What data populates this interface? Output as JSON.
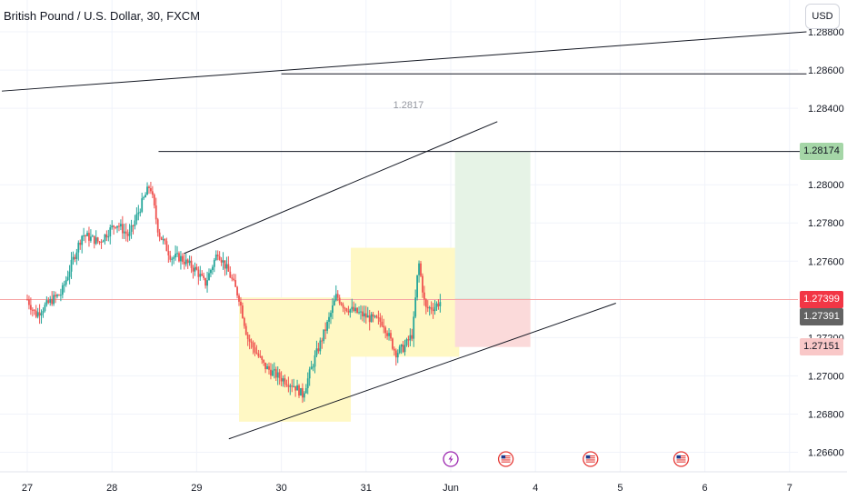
{
  "header": {
    "title": "British Pound / U.S. Dollar, 30, FXCM",
    "currency_button": "USD"
  },
  "price_tags": {
    "target": "1.28174",
    "last": "1.27399",
    "current": "1.27391",
    "stop": "1.27151"
  },
  "annotations": {
    "target_label": "1.2817"
  },
  "colors": {
    "bull": "#26a69a",
    "bear": "#ef5350",
    "target_zone": "#e6f3e6",
    "stop_zone": "#fbdada",
    "highlight_box": "#fff8c4",
    "target_tag": "#a5d6a7",
    "last_tag": "#f23645",
    "current_tag": "#636363",
    "stop_tag": "#f9c8c8"
  },
  "event_icons": [
    "lightning-icon",
    "us-flag-icon",
    "us-flag-icon",
    "us-flag-icon"
  ],
  "chart_data": {
    "type": "candlestick",
    "x_ticks": [
      "27",
      "28",
      "29",
      "30",
      "31",
      "Jun",
      "4",
      "5",
      "6",
      "7"
    ],
    "y_ticks": [
      "1.28800",
      "1.28600",
      "1.28400",
      "1.28000",
      "1.27800",
      "1.27600",
      "1.27200",
      "1.27000",
      "1.26800",
      "1.26600"
    ],
    "ylim": [
      1.2655,
      1.289
    ],
    "anchors": [
      {
        "t": 0,
        "p": 1.274
      },
      {
        "t": 0.1,
        "p": 1.2732
      },
      {
        "t": 0.3,
        "p": 1.274
      },
      {
        "t": 0.4,
        "p": 1.2743
      },
      {
        "t": 0.55,
        "p": 1.2762
      },
      {
        "t": 0.65,
        "p": 1.2774
      },
      {
        "t": 0.85,
        "p": 1.277
      },
      {
        "t": 1.05,
        "p": 1.278
      },
      {
        "t": 1.2,
        "p": 1.2773
      },
      {
        "t": 1.35,
        "p": 1.279
      },
      {
        "t": 1.45,
        "p": 1.28
      },
      {
        "t": 1.55,
        "p": 1.2775
      },
      {
        "t": 1.7,
        "p": 1.2762
      },
      {
        "t": 1.8,
        "p": 1.2762
      },
      {
        "t": 2.0,
        "p": 1.2755
      },
      {
        "t": 2.1,
        "p": 1.2748
      },
      {
        "t": 2.25,
        "p": 1.2765
      },
      {
        "t": 2.4,
        "p": 1.2752
      },
      {
        "t": 2.5,
        "p": 1.2741
      },
      {
        "t": 2.6,
        "p": 1.272
      },
      {
        "t": 2.8,
        "p": 1.2705
      },
      {
        "t": 2.95,
        "p": 1.27
      },
      {
        "t": 3.15,
        "p": 1.2695
      },
      {
        "t": 3.25,
        "p": 1.269
      },
      {
        "t": 3.4,
        "p": 1.271
      },
      {
        "t": 3.55,
        "p": 1.2728
      },
      {
        "t": 3.65,
        "p": 1.2742
      },
      {
        "t": 3.75,
        "p": 1.2736
      },
      {
        "t": 3.9,
        "p": 1.2733
      },
      {
        "t": 4.05,
        "p": 1.273
      },
      {
        "t": 4.2,
        "p": 1.2728
      },
      {
        "t": 4.35,
        "p": 1.2712
      },
      {
        "t": 4.45,
        "p": 1.2715
      },
      {
        "t": 4.55,
        "p": 1.2722
      },
      {
        "t": 4.62,
        "p": 1.276
      },
      {
        "t": 4.7,
        "p": 1.2735
      },
      {
        "t": 4.8,
        "p": 1.2736
      },
      {
        "t": 4.88,
        "p": 1.2739
      }
    ],
    "trend_lines": [
      {
        "t1": -0.3,
        "p1": 1.2849,
        "t2": 9.2,
        "p2": 1.288
      },
      {
        "t1": 3.0,
        "p1": 1.2858,
        "t2": 9.2,
        "p2": 1.2858
      },
      {
        "t1": 1.55,
        "p1": 1.28174,
        "t2": 9.2,
        "p2": 1.28174
      },
      {
        "t1": 1.85,
        "p1": 1.2764,
        "t2": 5.55,
        "p2": 1.2833
      },
      {
        "t1": 2.38,
        "p1": 1.2667,
        "t2": 6.95,
        "p2": 1.2738
      }
    ],
    "highlight_boxes": [
      {
        "t1": 2.5,
        "t2": 3.82,
        "p1": 1.2676,
        "p2": 1.2741
      },
      {
        "t1": 3.82,
        "t2": 5.1,
        "p1": 1.271,
        "p2": 1.2767
      }
    ],
    "position": {
      "t1": 5.05,
      "t2": 5.94,
      "entry": 1.274,
      "target": 1.28174,
      "stop": 1.27151
    },
    "event_times": [
      5.0,
      5.65,
      6.65,
      7.72
    ]
  }
}
